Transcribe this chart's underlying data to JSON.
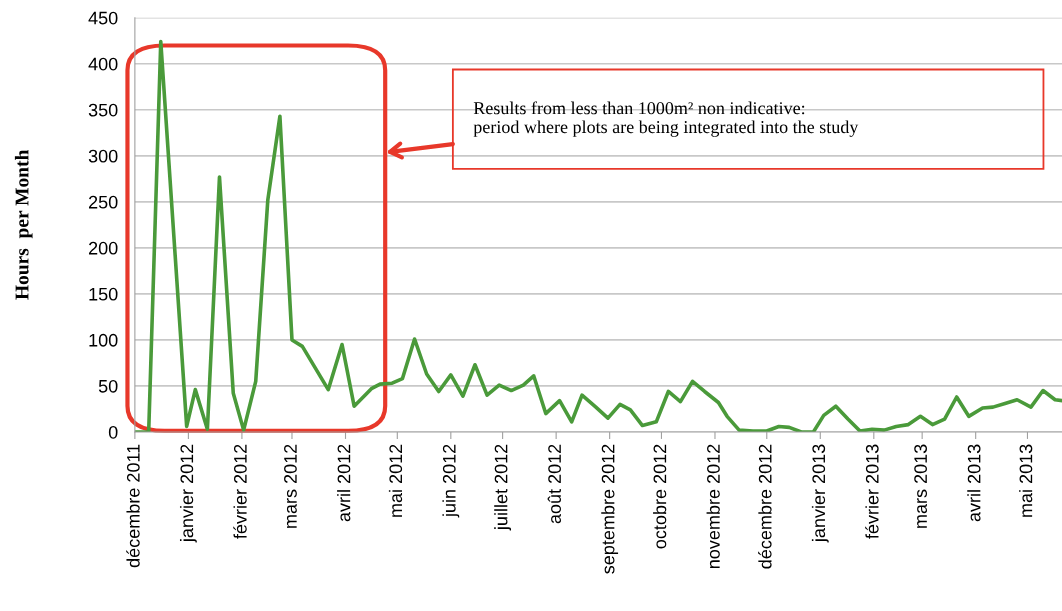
{
  "chart_data": {
    "type": "line",
    "ylabel": "Hours  per Month",
    "annotations": [
      "Results from less than 1000m² non indicative:\nperiod where plots are being integrated into the study"
    ],
    "x": [
      "2011-12-01",
      "2011-12-09",
      "2011-12-16",
      "2011-12-31",
      "2012-01-05",
      "2012-01-12",
      "2012-01-19",
      "2012-01-27",
      "2012-02-02",
      "2012-02-09",
      "2012-02-16",
      "2012-02-23",
      "2012-03-01",
      "2012-03-07",
      "2012-03-22",
      "2012-03-30",
      "2012-04-06",
      "2012-04-16",
      "2012-04-21",
      "2012-04-28",
      "2012-05-04",
      "2012-05-11",
      "2012-05-18",
      "2012-05-25",
      "2012-06-01",
      "2012-06-08",
      "2012-06-15",
      "2012-06-22",
      "2012-06-29",
      "2012-07-06",
      "2012-07-13",
      "2012-07-19",
      "2012-07-26",
      "2012-08-03",
      "2012-08-10",
      "2012-08-16",
      "2012-08-24",
      "2012-08-31",
      "2012-09-07",
      "2012-09-13",
      "2012-09-20",
      "2012-09-28",
      "2012-10-05",
      "2012-10-12",
      "2012-10-19",
      "2012-10-26",
      "2012-11-03",
      "2012-11-08",
      "2012-11-15",
      "2012-11-23",
      "2012-12-01",
      "2012-12-08",
      "2012-12-14",
      "2012-12-21",
      "2012-12-28",
      "2013-01-03",
      "2013-01-10",
      "2013-01-17",
      "2013-01-24",
      "2013-01-31",
      "2013-02-07",
      "2013-02-14",
      "2013-02-21",
      "2013-02-28",
      "2013-03-07",
      "2013-03-14",
      "2013-03-21",
      "2013-03-28",
      "2013-04-05",
      "2013-04-11",
      "2013-04-18",
      "2013-04-25",
      "2013-05-03",
      "2013-05-10",
      "2013-05-17",
      "2013-05-21"
    ],
    "series": [
      {
        "color": "#4a9a3a",
        "values": [
          0,
          0,
          424,
          6,
          46,
          3,
          277,
          42,
          2,
          55,
          252,
          343,
          100,
          93,
          46,
          95,
          28,
          47,
          52,
          53,
          58,
          101,
          63,
          44,
          62,
          39,
          73,
          40,
          51,
          45,
          51,
          61,
          20,
          34,
          11,
          40,
          27,
          15,
          30,
          24,
          7,
          11,
          44,
          33,
          55,
          44,
          32,
          17,
          2,
          1,
          1,
          6,
          5,
          0,
          0,
          18,
          28,
          14,
          1,
          3,
          2,
          6,
          8,
          17,
          8,
          14,
          38,
          17,
          26,
          27,
          31,
          35,
          27,
          45,
          35,
          34
        ]
      }
    ],
    "xlim": [
      "2011-12-01",
      "2013-05-21"
    ],
    "xticks": [
      {
        "value": "2011-12-01",
        "label": "décembre 2011"
      },
      {
        "value": "2012-01-01",
        "label": "janvier 2012"
      },
      {
        "value": "2012-02-01",
        "label": "février 2012"
      },
      {
        "value": "2012-03-01",
        "label": "mars 2012"
      },
      {
        "value": "2012-04-01",
        "label": "avril 2012"
      },
      {
        "value": "2012-05-01",
        "label": "mai 2012"
      },
      {
        "value": "2012-06-01",
        "label": "juin 2012"
      },
      {
        "value": "2012-07-01",
        "label": "juillet 2012"
      },
      {
        "value": "2012-08-01",
        "label": "août 2012"
      },
      {
        "value": "2012-09-01",
        "label": "septembre 2012"
      },
      {
        "value": "2012-10-01",
        "label": "octobre 2012"
      },
      {
        "value": "2012-11-01",
        "label": "novembre 2012"
      },
      {
        "value": "2012-12-01",
        "label": "décembre 2012"
      },
      {
        "value": "2013-01-01",
        "label": "janvier 2013"
      },
      {
        "value": "2013-02-01",
        "label": "février 2013"
      },
      {
        "value": "2013-03-01",
        "label": "mars 2013"
      },
      {
        "value": "2013-04-01",
        "label": "avril 2013"
      },
      {
        "value": "2013-05-01",
        "label": "mai 2013"
      }
    ],
    "ylim": [
      0,
      450
    ],
    "yticks": [
      0,
      50,
      100,
      150,
      200,
      250,
      300,
      350,
      400,
      450
    ],
    "grid": "y",
    "marker": "none",
    "line_style": "solid"
  }
}
